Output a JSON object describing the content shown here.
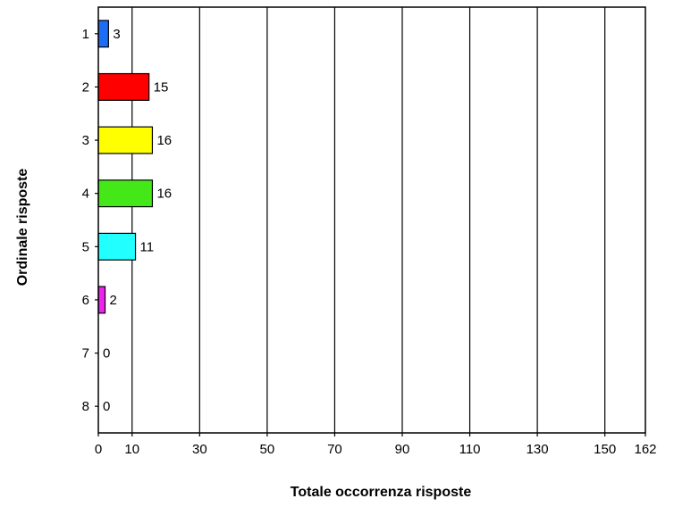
{
  "chart_data": {
    "type": "bar",
    "orientation": "horizontal",
    "categories": [
      "1",
      "2",
      "3",
      "4",
      "5",
      "6",
      "7",
      "8"
    ],
    "values": [
      3,
      15,
      16,
      16,
      11,
      2,
      0,
      0
    ],
    "bar_colors": [
      "#1e6ef5",
      "#ff0000",
      "#ffff00",
      "#44e818",
      "#22ffff",
      "#ee22ee",
      "#888888",
      "#888888"
    ],
    "xlabel": "Totale occorrenza risposte",
    "ylabel": "Ordinale risposte",
    "xlim": [
      0,
      162
    ],
    "xticks": [
      0,
      10,
      30,
      50,
      70,
      90,
      110,
      130,
      150,
      162
    ],
    "xtick_labels": [
      "0",
      "10",
      "30",
      "50",
      "70",
      "90",
      "110",
      "130",
      "150",
      "162"
    ],
    "grid": "vertical",
    "legend": "none"
  }
}
